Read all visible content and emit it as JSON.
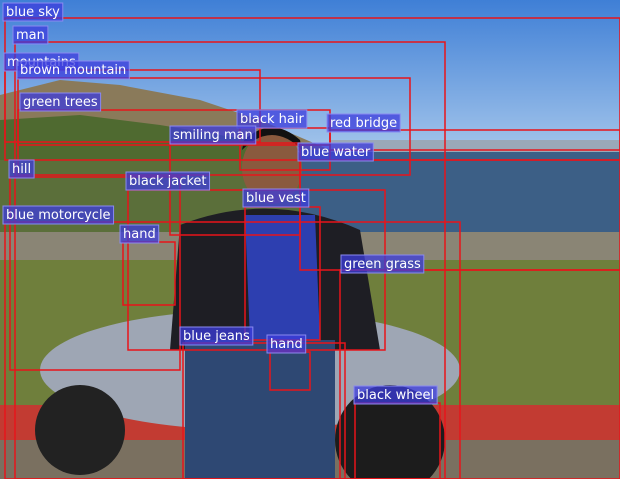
{
  "regions": [
    {
      "label": "blue sky"
    },
    {
      "label": "man"
    },
    {
      "label": "mountains"
    },
    {
      "label": "brown mountain"
    },
    {
      "label": "green trees"
    },
    {
      "label": "black hair"
    },
    {
      "label": "red bridge"
    },
    {
      "label": "smiling man"
    },
    {
      "label": "blue water"
    },
    {
      "label": "hill"
    },
    {
      "label": "black jacket"
    },
    {
      "label": "blue vest"
    },
    {
      "label": "blue motorcycle"
    },
    {
      "label": "hand"
    },
    {
      "label": "green grass"
    },
    {
      "label": "blue jeans"
    },
    {
      "label": "hand"
    },
    {
      "label": "black wheel"
    }
  ]
}
